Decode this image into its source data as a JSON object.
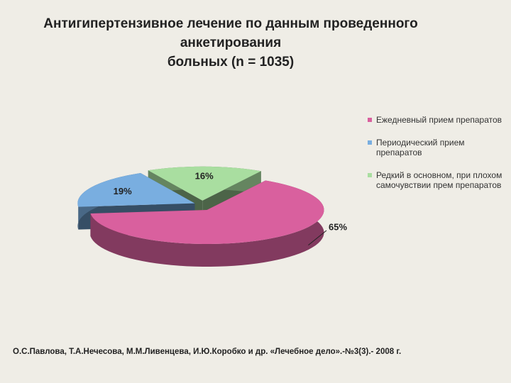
{
  "chart_data": {
    "type": "pie3d",
    "title": [
      "Антигипертензивное лечение по данным проведенного",
      "анкетирования",
      "больных (n = 1035)"
    ],
    "categories": [
      "Ежедневный прием препаратов",
      "Периодический прием препаратов",
      "Редкий в основном, при плохом самочувствии прем препаратов"
    ],
    "values": [
      65,
      19,
      16
    ],
    "value_labels": [
      "65%",
      "19%",
      "16%"
    ],
    "colors": [
      "#d9609e",
      "#79aee0",
      "#a9dea0"
    ],
    "source": "О.С.Павлова, Т.А.Нечесова, М.М.Ливенцева, И.Ю.Коробко и др. «Лечебное дело».-№3(3).- 2008 г."
  }
}
